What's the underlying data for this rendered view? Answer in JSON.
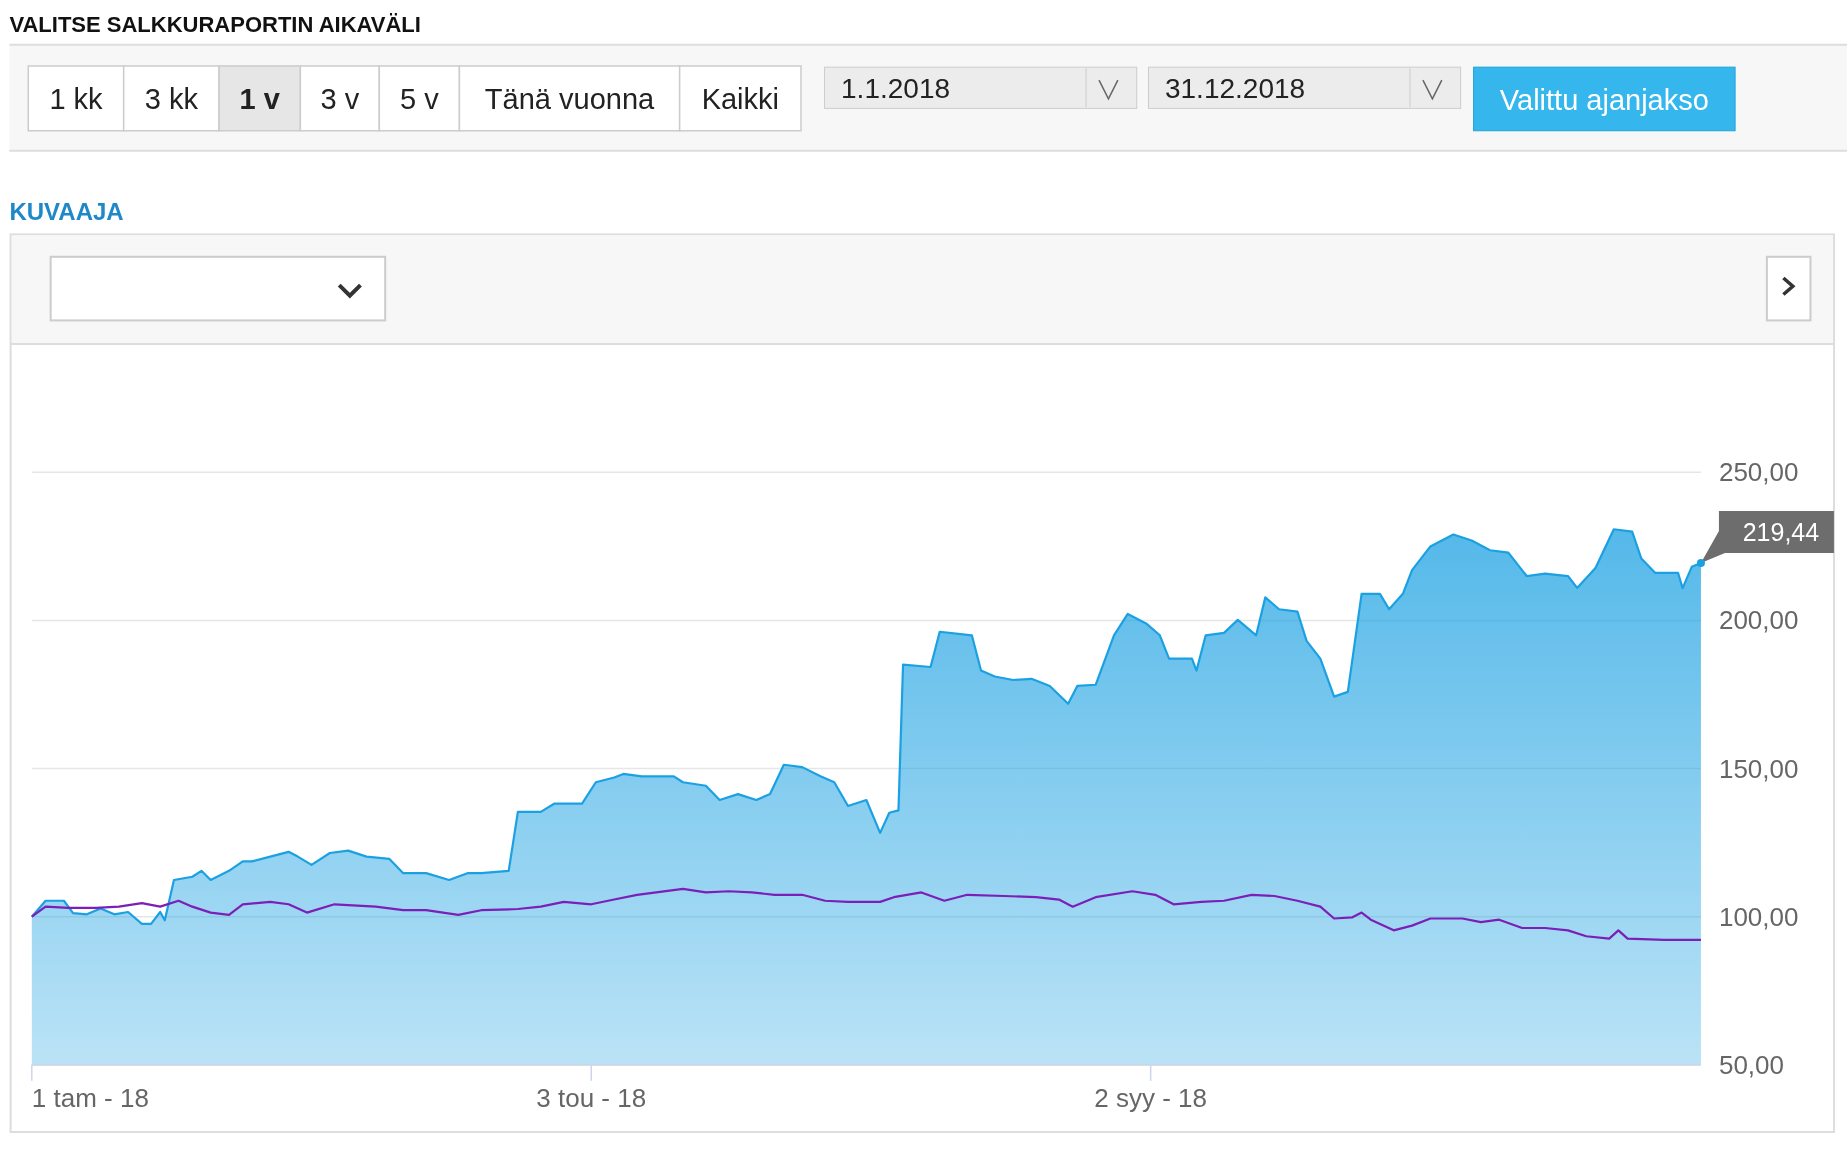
{
  "chart_data": {
    "type": "area",
    "title": "VALITSE SALKKURAPORTIN AIKAVÄLI",
    "subtitle": "KUVAAJA",
    "xlim": [
      "2018-01-01",
      "2018-12-31"
    ],
    "xticks": [
      {
        "value": "2018-01-01",
        "label": "1 tam - 18"
      },
      {
        "value": "2018-05-03",
        "label": "3 tou - 18"
      },
      {
        "value": "2018-09-02",
        "label": "2 syy - 18"
      }
    ],
    "ylim": [
      50,
      250
    ],
    "yticks": [
      {
        "value": 50,
        "label": "50,00"
      },
      {
        "value": 100,
        "label": "100,00"
      },
      {
        "value": 150,
        "label": "150,00"
      },
      {
        "value": 200,
        "label": "200,00"
      },
      {
        "value": 250,
        "label": "250,00"
      }
    ],
    "grid": "y",
    "annotations": [
      "1 kk",
      "3 kk",
      "1 v",
      "3 v",
      "5 v",
      "Tänä vuonna",
      "Kaikki",
      "1.1.2018",
      "31.12.2018",
      "Valittu ajanjakso",
      {
        "text": "219,44",
        "x": "2018-12-31",
        "y": 219.44
      }
    ],
    "series": [
      {
        "type": "area",
        "color": "#1ba1e2",
        "x": [
          "2018-01-01",
          "2018-01-04",
          "2018-01-08",
          "2018-01-10",
          "2018-01-13",
          "2018-01-16",
          "2018-01-19",
          "2018-01-22",
          "2018-01-25",
          "2018-01-27",
          "2018-01-29",
          "2018-01-30",
          "2018-02-01",
          "2018-02-05",
          "2018-02-07",
          "2018-02-09",
          "2018-02-13",
          "2018-02-16",
          "2018-02-18",
          "2018-02-22",
          "2018-02-26",
          "2018-02-28",
          "2018-03-03",
          "2018-03-07",
          "2018-03-11",
          "2018-03-15",
          "2018-03-20",
          "2018-03-23",
          "2018-03-28",
          "2018-04-02",
          "2018-04-06",
          "2018-04-09",
          "2018-04-15",
          "2018-04-17",
          "2018-04-22",
          "2018-04-25",
          "2018-05-01",
          "2018-05-04",
          "2018-05-08",
          "2018-05-10",
          "2018-05-14",
          "2018-05-21",
          "2018-05-23",
          "2018-05-28",
          "2018-05-31",
          "2018-06-04",
          "2018-06-08",
          "2018-06-11",
          "2018-06-14",
          "2018-06-18",
          "2018-06-22",
          "2018-06-25",
          "2018-06-28",
          "2018-07-02",
          "2018-07-05",
          "2018-07-07",
          "2018-07-09",
          "2018-07-10",
          "2018-07-16",
          "2018-07-18",
          "2018-07-25",
          "2018-07-27",
          "2018-07-30",
          "2018-08-03",
          "2018-08-07",
          "2018-08-11",
          "2018-08-15",
          "2018-08-17",
          "2018-08-21",
          "2018-08-25",
          "2018-08-28",
          "2018-09-01",
          "2018-09-04",
          "2018-09-06",
          "2018-09-11",
          "2018-09-12",
          "2018-09-14",
          "2018-09-18",
          "2018-09-21",
          "2018-09-25",
          "2018-09-27",
          "2018-09-30",
          "2018-10-04",
          "2018-10-06",
          "2018-10-09",
          "2018-10-12",
          "2018-10-15",
          "2018-10-18",
          "2018-10-22",
          "2018-10-24",
          "2018-10-27",
          "2018-10-29",
          "2018-11-02",
          "2018-11-07",
          "2018-11-11",
          "2018-11-15",
          "2018-11-19",
          "2018-11-23",
          "2018-11-27",
          "2018-12-02",
          "2018-12-04",
          "2018-12-08",
          "2018-12-12",
          "2018-12-16",
          "2018-12-18",
          "2018-12-21",
          "2018-12-26",
          "2018-12-27",
          "2018-12-29",
          "2018-12-31"
        ],
        "values": [
          100,
          105.4,
          105.4,
          101.2,
          100.8,
          102.8,
          100.8,
          101.6,
          97.6,
          97.6,
          101.6,
          98.8,
          112.4,
          113.5,
          115.5,
          112.4,
          115.5,
          118.7,
          118.7,
          120.3,
          121.9,
          120.3,
          117.5,
          121.5,
          122.3,
          120.3,
          119.5,
          114.7,
          114.7,
          112.4,
          114.7,
          114.7,
          115.5,
          135.4,
          135.4,
          138.2,
          138.2,
          145.4,
          147,
          148.2,
          147.4,
          147.4,
          145.4,
          144.2,
          139.4,
          141.4,
          139.4,
          141.4,
          151.3,
          150.5,
          147.4,
          145.4,
          137.4,
          139.4,
          128.3,
          135.1,
          135.9,
          185.1,
          184.3,
          196.2,
          195,
          183.1,
          181.1,
          179.9,
          180.3,
          177.9,
          171.9,
          177.9,
          178.3,
          195,
          202.2,
          199,
          195,
          187.1,
          187.1,
          183.1,
          195,
          195.8,
          200.2,
          195,
          207.8,
          203.8,
          203,
          193.1,
          187.1,
          174.3,
          175.9,
          209,
          209,
          203.8,
          209,
          217,
          225,
          229,
          227,
          223.7,
          222.9,
          215,
          215.8,
          215,
          211,
          217.7,
          230.8,
          230,
          220.9,
          216.1,
          216.1,
          210.9,
          218.1,
          219.44
        ]
      },
      {
        "type": "line",
        "color": "#7b1fb8",
        "x": [
          "2018-01-01",
          "2018-01-04",
          "2018-01-09",
          "2018-01-15",
          "2018-01-20",
          "2018-01-25",
          "2018-01-29",
          "2018-02-02",
          "2018-02-05",
          "2018-02-09",
          "2018-02-13",
          "2018-02-16",
          "2018-02-22",
          "2018-02-26",
          "2018-03-02",
          "2018-03-08",
          "2018-03-12",
          "2018-03-17",
          "2018-03-23",
          "2018-03-28",
          "2018-04-04",
          "2018-04-09",
          "2018-04-17",
          "2018-04-22",
          "2018-04-27",
          "2018-05-03",
          "2018-05-08",
          "2018-05-13",
          "2018-05-23",
          "2018-05-28",
          "2018-06-02",
          "2018-06-07",
          "2018-06-12",
          "2018-06-18",
          "2018-06-23",
          "2018-06-28",
          "2018-07-05",
          "2018-07-08",
          "2018-07-14",
          "2018-07-19",
          "2018-07-24",
          "2018-08-01",
          "2018-08-08",
          "2018-08-13",
          "2018-08-16",
          "2018-08-21",
          "2018-08-29",
          "2018-09-03",
          "2018-09-07",
          "2018-09-13",
          "2018-09-18",
          "2018-09-24",
          "2018-09-29",
          "2018-10-04",
          "2018-10-09",
          "2018-10-12",
          "2018-10-16",
          "2018-10-18",
          "2018-10-20",
          "2018-10-25",
          "2018-10-29",
          "2018-11-02",
          "2018-11-09",
          "2018-11-13",
          "2018-11-17",
          "2018-11-22",
          "2018-11-27",
          "2018-12-02",
          "2018-12-06",
          "2018-12-11",
          "2018-12-13",
          "2018-12-15",
          "2018-12-23",
          "2018-12-31"
        ],
        "values": [
          100,
          103.4,
          103,
          103,
          103.4,
          104.6,
          103.4,
          105.4,
          103.4,
          101.4,
          100.6,
          104.2,
          105,
          104.2,
          101.4,
          104.2,
          103.8,
          103.4,
          102.2,
          102.2,
          100.6,
          102.2,
          102.6,
          103.4,
          105,
          104.2,
          105.8,
          107.4,
          109.4,
          108.2,
          108.6,
          108.2,
          107.4,
          107.4,
          105.4,
          105,
          105,
          106.6,
          108.2,
          105.4,
          107.4,
          107,
          106.6,
          105.8,
          103.4,
          106.6,
          108.6,
          107.4,
          104.2,
          105,
          105.4,
          107.4,
          107,
          105.4,
          103.4,
          99.4,
          99.8,
          101.4,
          99,
          95.4,
          97,
          99.4,
          99.4,
          98.2,
          99,
          96.2,
          96.2,
          95.4,
          93.4,
          92.6,
          95.4,
          92.6,
          92.2,
          92.2
        ]
      }
    ]
  }
}
